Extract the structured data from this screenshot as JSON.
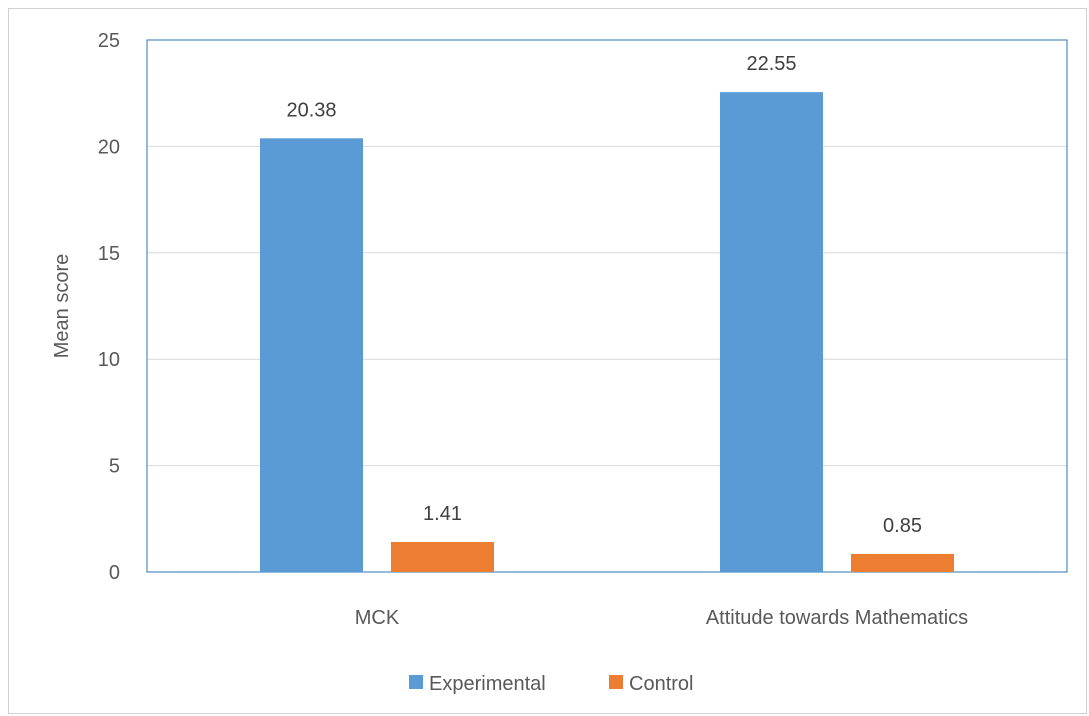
{
  "chart_data": {
    "type": "bar",
    "title": "",
    "xlabel": "",
    "ylabel": "Mean score",
    "ylim": [
      0,
      25
    ],
    "yticks": [
      0,
      5,
      10,
      15,
      20,
      25
    ],
    "categories": [
      "MCK",
      "Attitude towards Mathematics"
    ],
    "series": [
      {
        "name": "Experimental",
        "color": "#5b9bd5",
        "values": [
          20.38,
          22.55
        ],
        "labels": [
          "20.38",
          "22.55"
        ]
      },
      {
        "name": "Control",
        "color": "#ed7d31",
        "values": [
          1.41,
          0.85
        ],
        "labels": [
          "1.41",
          "0.85"
        ]
      }
    ],
    "grid": true,
    "legend_position": "bottom"
  }
}
